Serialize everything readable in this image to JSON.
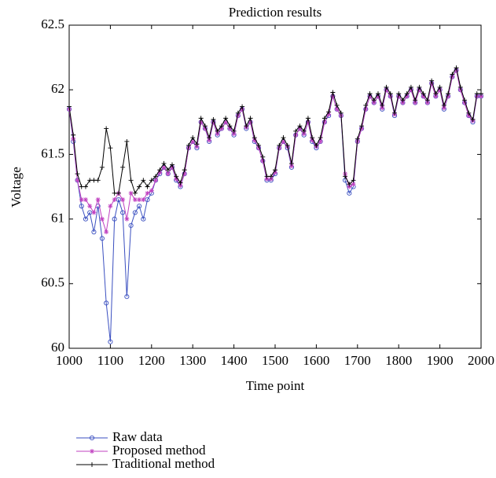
{
  "chart_data": {
    "type": "line",
    "title": "Prediction results",
    "x_label": "Time point",
    "y_label": "Voltage",
    "x": [
      1000,
      1010,
      1020,
      1030,
      1040,
      1050,
      1060,
      1070,
      1080,
      1090,
      1100,
      1110,
      1120,
      1130,
      1140,
      1150,
      1160,
      1170,
      1180,
      1190,
      1200,
      1210,
      1220,
      1230,
      1240,
      1250,
      1260,
      1270,
      1280,
      1290,
      1300,
      1310,
      1320,
      1330,
      1340,
      1350,
      1360,
      1370,
      1380,
      1390,
      1400,
      1410,
      1420,
      1430,
      1440,
      1450,
      1460,
      1470,
      1480,
      1490,
      1500,
      1510,
      1520,
      1530,
      1540,
      1550,
      1560,
      1570,
      1580,
      1590,
      1600,
      1610,
      1620,
      1630,
      1640,
      1650,
      1660,
      1670,
      1680,
      1690,
      1700,
      1710,
      1720,
      1730,
      1740,
      1750,
      1760,
      1770,
      1780,
      1790,
      1800,
      1810,
      1820,
      1830,
      1840,
      1850,
      1860,
      1870,
      1880,
      1890,
      1900,
      1910,
      1920,
      1930,
      1940,
      1950,
      1960,
      1970,
      1980,
      1990,
      2000
    ],
    "series": [
      {
        "name": "Raw data",
        "color": "#3a4fc0",
        "marker": "circle",
        "values": [
          61.85,
          61.6,
          61.3,
          61.1,
          61.0,
          61.05,
          60.9,
          61.1,
          60.85,
          60.35,
          60.05,
          61.0,
          61.15,
          61.05,
          60.4,
          60.95,
          61.05,
          61.1,
          61.0,
          61.15,
          61.2,
          61.3,
          61.35,
          61.4,
          61.35,
          61.4,
          61.3,
          61.25,
          61.35,
          61.55,
          61.6,
          61.55,
          61.75,
          61.7,
          61.6,
          61.75,
          61.65,
          61.7,
          61.75,
          61.7,
          61.65,
          61.8,
          61.85,
          61.7,
          61.75,
          61.6,
          61.55,
          61.45,
          61.3,
          61.3,
          61.35,
          61.55,
          61.6,
          61.55,
          61.4,
          61.65,
          61.7,
          61.65,
          61.75,
          61.6,
          61.55,
          61.6,
          61.75,
          61.8,
          61.95,
          61.85,
          61.8,
          61.3,
          61.2,
          61.25,
          61.6,
          61.7,
          61.85,
          61.95,
          61.9,
          61.95,
          61.85,
          62.0,
          61.95,
          61.8,
          61.95,
          61.9,
          61.95,
          62.0,
          61.9,
          62.0,
          61.95,
          61.9,
          62.05,
          61.95,
          62.0,
          61.85,
          61.95,
          62.1,
          62.15,
          62.0,
          61.9,
          61.8,
          61.75,
          61.95,
          61.95
        ]
      },
      {
        "name": "Proposed method",
        "color": "#c040c0",
        "marker": "asterisk",
        "values": [
          61.85,
          61.62,
          61.3,
          61.15,
          61.15,
          61.1,
          61.05,
          61.15,
          61.0,
          60.9,
          61.1,
          61.15,
          61.2,
          61.15,
          61.0,
          61.2,
          61.15,
          61.15,
          61.15,
          61.2,
          61.22,
          61.3,
          61.36,
          61.4,
          61.35,
          61.4,
          61.31,
          61.26,
          61.35,
          61.55,
          61.6,
          61.56,
          61.75,
          61.7,
          61.61,
          61.75,
          61.66,
          61.7,
          61.75,
          61.7,
          61.66,
          61.8,
          61.85,
          61.71,
          61.75,
          61.61,
          61.55,
          61.45,
          61.31,
          61.31,
          61.36,
          61.55,
          61.6,
          61.56,
          61.41,
          61.65,
          61.7,
          61.66,
          61.75,
          61.61,
          61.56,
          61.6,
          61.75,
          61.81,
          61.95,
          61.85,
          61.8,
          61.35,
          61.25,
          61.27,
          61.6,
          61.7,
          61.85,
          61.95,
          61.9,
          61.95,
          61.86,
          62.0,
          61.95,
          61.81,
          61.95,
          61.9,
          61.95,
          62.0,
          61.9,
          62.0,
          61.95,
          61.9,
          62.05,
          61.95,
          62.0,
          61.86,
          61.95,
          62.1,
          62.15,
          62.0,
          61.9,
          61.8,
          61.76,
          61.95,
          61.95
        ]
      },
      {
        "name": "Traditional method",
        "color": "#000000",
        "marker": "plus",
        "values": [
          61.87,
          61.65,
          61.35,
          61.25,
          61.25,
          61.3,
          61.3,
          61.3,
          61.4,
          61.7,
          61.55,
          61.2,
          61.2,
          61.4,
          61.6,
          61.3,
          61.2,
          61.25,
          61.3,
          61.25,
          61.3,
          61.33,
          61.38,
          61.43,
          61.38,
          61.42,
          61.33,
          61.28,
          61.38,
          61.57,
          61.63,
          61.58,
          61.78,
          61.72,
          61.63,
          61.77,
          61.68,
          61.72,
          61.78,
          61.72,
          61.68,
          61.82,
          61.87,
          61.72,
          61.78,
          61.63,
          61.57,
          61.48,
          61.33,
          61.33,
          61.38,
          61.57,
          61.63,
          61.57,
          61.43,
          61.68,
          61.72,
          61.68,
          61.78,
          61.63,
          61.57,
          61.63,
          61.78,
          61.83,
          61.98,
          61.88,
          61.82,
          61.33,
          61.27,
          61.3,
          61.62,
          61.72,
          61.88,
          61.97,
          61.92,
          61.97,
          61.88,
          62.02,
          61.97,
          61.82,
          61.97,
          61.92,
          61.97,
          62.02,
          61.92,
          62.02,
          61.97,
          61.92,
          62.07,
          61.97,
          62.02,
          61.88,
          61.97,
          62.12,
          62.17,
          62.02,
          61.92,
          61.82,
          61.77,
          61.97,
          61.97
        ]
      }
    ],
    "xlim": [
      1000,
      2000
    ],
    "xticks": [
      1000,
      1100,
      1200,
      1300,
      1400,
      1500,
      1600,
      1700,
      1800,
      1900,
      2000
    ],
    "ylim": [
      60,
      62.5
    ],
    "yticks": [
      60,
      60.5,
      61,
      61.5,
      62,
      62.5
    ],
    "grid": false,
    "legend": "below"
  }
}
